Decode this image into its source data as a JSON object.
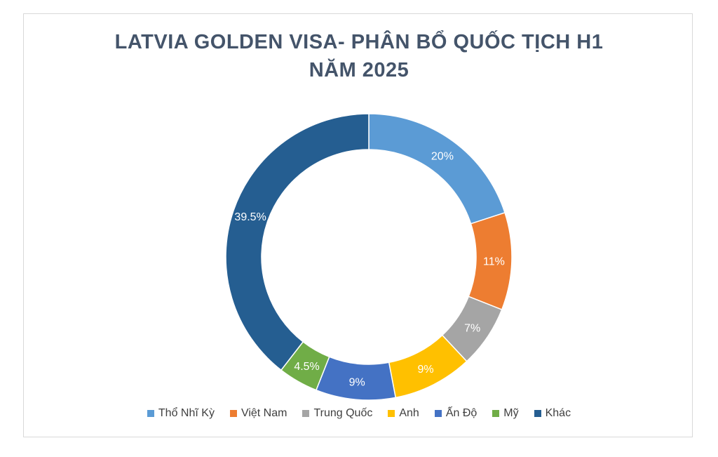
{
  "chart_data": {
    "type": "pie",
    "variant": "donut",
    "title_line1": "LATVIA GOLDEN VISA- PHÂN BỔ QUỐC TỊCH H1",
    "title_line2": "NĂM 2025",
    "legend_position": "bottom",
    "slices": [
      {
        "name": "Thổ Nhĩ Kỳ",
        "value": 20,
        "label": "20%",
        "color": "#5b9bd5"
      },
      {
        "name": "Việt Nam",
        "value": 11,
        "label": "11%",
        "color": "#ed7d31"
      },
      {
        "name": "Trung Quốc",
        "value": 7,
        "label": "7%",
        "color": "#a5a5a5"
      },
      {
        "name": "Anh",
        "value": 9,
        "label": "9%",
        "color": "#ffc000"
      },
      {
        "name": "Ấn Độ",
        "value": 9,
        "label": "9%",
        "color": "#4472c4"
      },
      {
        "name": "Mỹ",
        "value": 4.5,
        "label": "4.5%",
        "color": "#70ad47"
      },
      {
        "name": "Khác",
        "value": 39.5,
        "label": "39.5%",
        "color": "#255e91"
      }
    ]
  }
}
